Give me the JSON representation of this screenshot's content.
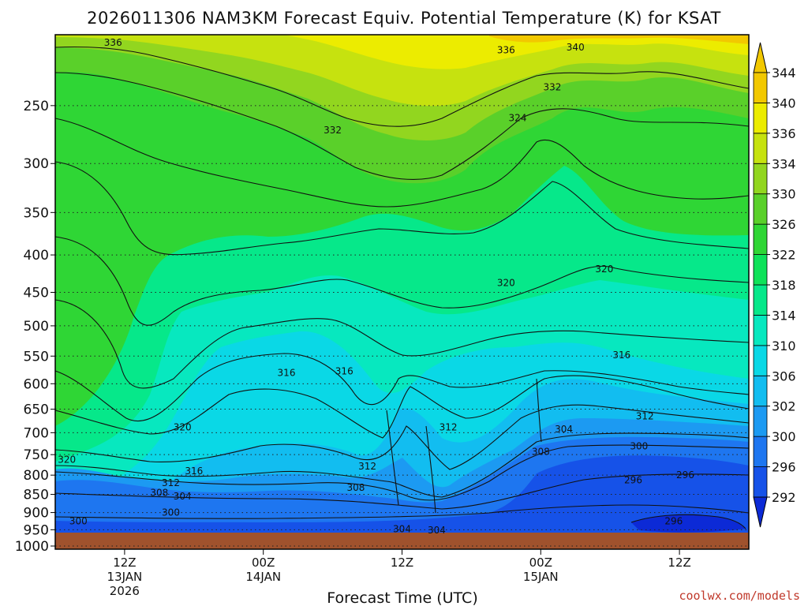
{
  "chart_data": {
    "type": "heatmap",
    "title": "2026011306 NAM3KM Forecast Equiv. Potential Temperature (K) for KSAT",
    "xlabel": "Forecast Time (UTC)",
    "ylabel": "",
    "x_ticks": [
      {
        "hour": 6,
        "lines": [
          "12Z",
          "13JAN",
          "2026"
        ]
      },
      {
        "hour": 18,
        "lines": [
          "00Z",
          "14JAN"
        ]
      },
      {
        "hour": 30,
        "lines": [
          "12Z"
        ]
      },
      {
        "hour": 42,
        "lines": [
          "00Z",
          "15JAN"
        ]
      },
      {
        "hour": 54,
        "lines": [
          "12Z"
        ]
      }
    ],
    "x_hours": [
      0,
      60
    ],
    "y_ticks": [
      250,
      300,
      350,
      400,
      450,
      500,
      550,
      600,
      650,
      700,
      750,
      800,
      850,
      900,
      950,
      1000
    ],
    "y_range_hpa": [
      200,
      1010
    ],
    "y_scale": "log",
    "grid": "dotted horizontal at each pressure tick",
    "colorbar": {
      "unit": "K",
      "levels": [
        292,
        296,
        300,
        302,
        306,
        310,
        314,
        318,
        322,
        326,
        330,
        334,
        336,
        340,
        344
      ],
      "colors": [
        "#0c2ad6",
        "#1652e8",
        "#1e76f0",
        "#1c9af2",
        "#12bdf0",
        "#0ad8e6",
        "#07e8bf",
        "#06e88a",
        "#0ee259",
        "#2fd635",
        "#5ad02a",
        "#92d61f",
        "#c6e20f",
        "#ecec00",
        "#f2c800"
      ]
    },
    "contour_labels": [
      {
        "hour": 5,
        "p": 205,
        "value": "336"
      },
      {
        "hour": 39,
        "p": 210,
        "value": "336"
      },
      {
        "hour": 45,
        "p": 208,
        "value": "340"
      },
      {
        "hour": 43,
        "p": 236,
        "value": "332"
      },
      {
        "hour": 24,
        "p": 270,
        "value": "332"
      },
      {
        "hour": 40,
        "p": 260,
        "value": "324"
      },
      {
        "hour": 47.5,
        "p": 418,
        "value": "320"
      },
      {
        "hour": 39,
        "p": 437,
        "value": "320"
      },
      {
        "hour": 49,
        "p": 548,
        "value": "316"
      },
      {
        "hour": 20,
        "p": 580,
        "value": "316"
      },
      {
        "hour": 25,
        "p": 577,
        "value": "316"
      },
      {
        "hour": 51,
        "p": 665,
        "value": "312"
      },
      {
        "hour": 34,
        "p": 688,
        "value": "312"
      },
      {
        "hour": 27,
        "p": 778,
        "value": "312"
      },
      {
        "hour": 11,
        "p": 688,
        "value": "320"
      },
      {
        "hour": 1,
        "p": 762,
        "value": "320"
      },
      {
        "hour": 12,
        "p": 790,
        "value": "316"
      },
      {
        "hour": 10,
        "p": 820,
        "value": "312"
      },
      {
        "hour": 9,
        "p": 846,
        "value": "308"
      },
      {
        "hour": 11,
        "p": 855,
        "value": "304"
      },
      {
        "hour": 26,
        "p": 832,
        "value": "308"
      },
      {
        "hour": 44,
        "p": 692,
        "value": "304"
      },
      {
        "hour": 42,
        "p": 743,
        "value": "308"
      },
      {
        "hour": 50.5,
        "p": 730,
        "value": "300"
      },
      {
        "hour": 54.5,
        "p": 800,
        "value": "296"
      },
      {
        "hour": 50,
        "p": 813,
        "value": "296"
      },
      {
        "hour": 10,
        "p": 900,
        "value": "300"
      },
      {
        "hour": 2,
        "p": 925,
        "value": "300"
      },
      {
        "hour": 53.5,
        "p": 925,
        "value": "296"
      },
      {
        "hour": 30,
        "p": 948,
        "value": "304"
      },
      {
        "hour": 33,
        "p": 952,
        "value": "304"
      }
    ],
    "surface_band_color": "#a0522d"
  },
  "credit": "coolwx.com/models"
}
